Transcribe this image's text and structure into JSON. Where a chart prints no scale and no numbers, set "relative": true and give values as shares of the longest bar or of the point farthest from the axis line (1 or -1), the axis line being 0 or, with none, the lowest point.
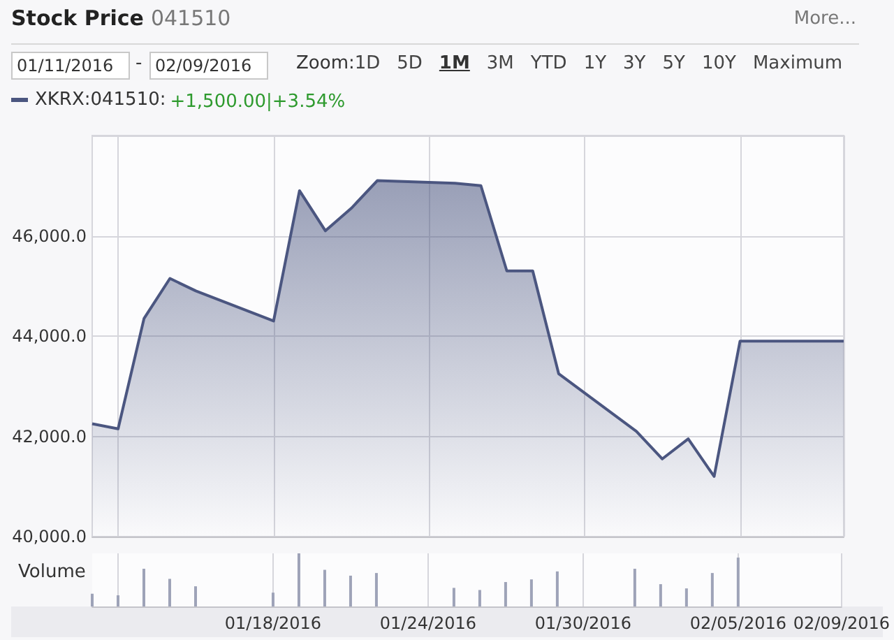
{
  "chart_data": [
    {
      "type": "area",
      "title": "Stock Price",
      "subtitle": "041510",
      "annotations": [
        "More...",
        "01/11/2016",
        "-",
        "02/09/2016",
        "Zoom:",
        "1D",
        "5D",
        "1M",
        "3M",
        "YTD",
        "1Y",
        "3Y",
        "5Y",
        "10Y",
        "Maximum",
        "+1,500.00|+3.54%"
      ],
      "x": [
        "2016-01-11",
        "2016-01-12",
        "2016-01-13",
        "2016-01-14",
        "2016-01-15",
        "2016-01-18",
        "2016-01-19",
        "2016-01-20",
        "2016-01-21",
        "2016-01-22",
        "2016-01-25",
        "2016-01-26",
        "2016-01-27",
        "2016-01-28",
        "2016-01-29",
        "2016-02-01",
        "2016-02-02",
        "2016-02-03",
        "2016-02-04",
        "2016-02-05",
        "2016-02-09"
      ],
      "series": [
        {
          "name": "XKRX:041510:",
          "color": "#4b5680",
          "values": [
            42250,
            42150,
            44350,
            45150,
            44900,
            44300,
            46900,
            46100,
            46550,
            47100,
            47050,
            47000,
            45300,
            45300,
            43250,
            42100,
            41550,
            41950,
            41200,
            43900,
            43900
          ]
        }
      ],
      "xlim": [
        "2016-01-11",
        "2016-02-09"
      ],
      "xticks": [
        {
          "value": "2016-01-12",
          "label": null
        },
        {
          "value": "2016-01-18",
          "label": null
        },
        {
          "value": "2016-01-24",
          "label": null
        },
        {
          "value": "2016-01-30",
          "label": null
        },
        {
          "value": "2016-02-05",
          "label": null
        },
        {
          "value": "2016-02-09",
          "label": null
        }
      ],
      "ylim": [
        40000,
        48000
      ],
      "yticks": [
        {
          "value": 40000,
          "label": "40,000.0"
        },
        {
          "value": 42000,
          "label": "42,000.0"
        },
        {
          "value": 44000,
          "label": "44,000.0"
        },
        {
          "value": 46000,
          "label": "46,000.0"
        },
        {
          "value": 48000,
          "label": null
        }
      ],
      "grid": true,
      "legend": "top left",
      "tick_labels": "y"
    },
    {
      "type": "bar",
      "title": "Volume",
      "x": [
        "2016-01-11",
        "2016-01-12",
        "2016-01-13",
        "2016-01-14",
        "2016-01-15",
        "2016-01-18",
        "2016-01-19",
        "2016-01-20",
        "2016-01-21",
        "2016-01-22",
        "2016-01-25",
        "2016-01-26",
        "2016-01-27",
        "2016-01-28",
        "2016-01-29",
        "2016-02-01",
        "2016-02-02",
        "2016-02-03",
        "2016-02-04",
        "2016-02-05"
      ],
      "values": [
        0.24,
        0.21,
        0.71,
        0.52,
        0.38,
        0.26,
        1,
        0.69,
        0.58,
        0.63,
        0.35,
        0.31,
        0.46,
        0.51,
        0.66,
        0.71,
        0.42,
        0.34,
        0.63,
        0.92
      ],
      "color": "#9ea3b8",
      "relative": true,
      "xlim": [
        "2016-01-11",
        "2016-02-09"
      ],
      "xticks": [
        {
          "value": "2016-01-12",
          "label": null
        },
        {
          "value": "2016-01-18",
          "label": "01/18/2016"
        },
        {
          "value": "2016-01-24",
          "label": "01/24/2016"
        },
        {
          "value": "2016-01-30",
          "label": "01/30/2016"
        },
        {
          "value": "2016-02-05",
          "label": "02/05/2016"
        },
        {
          "value": "2016-02-09",
          "label": "02/09/2016"
        }
      ],
      "grid": "x",
      "tick_labels": "x"
    }
  ]
}
